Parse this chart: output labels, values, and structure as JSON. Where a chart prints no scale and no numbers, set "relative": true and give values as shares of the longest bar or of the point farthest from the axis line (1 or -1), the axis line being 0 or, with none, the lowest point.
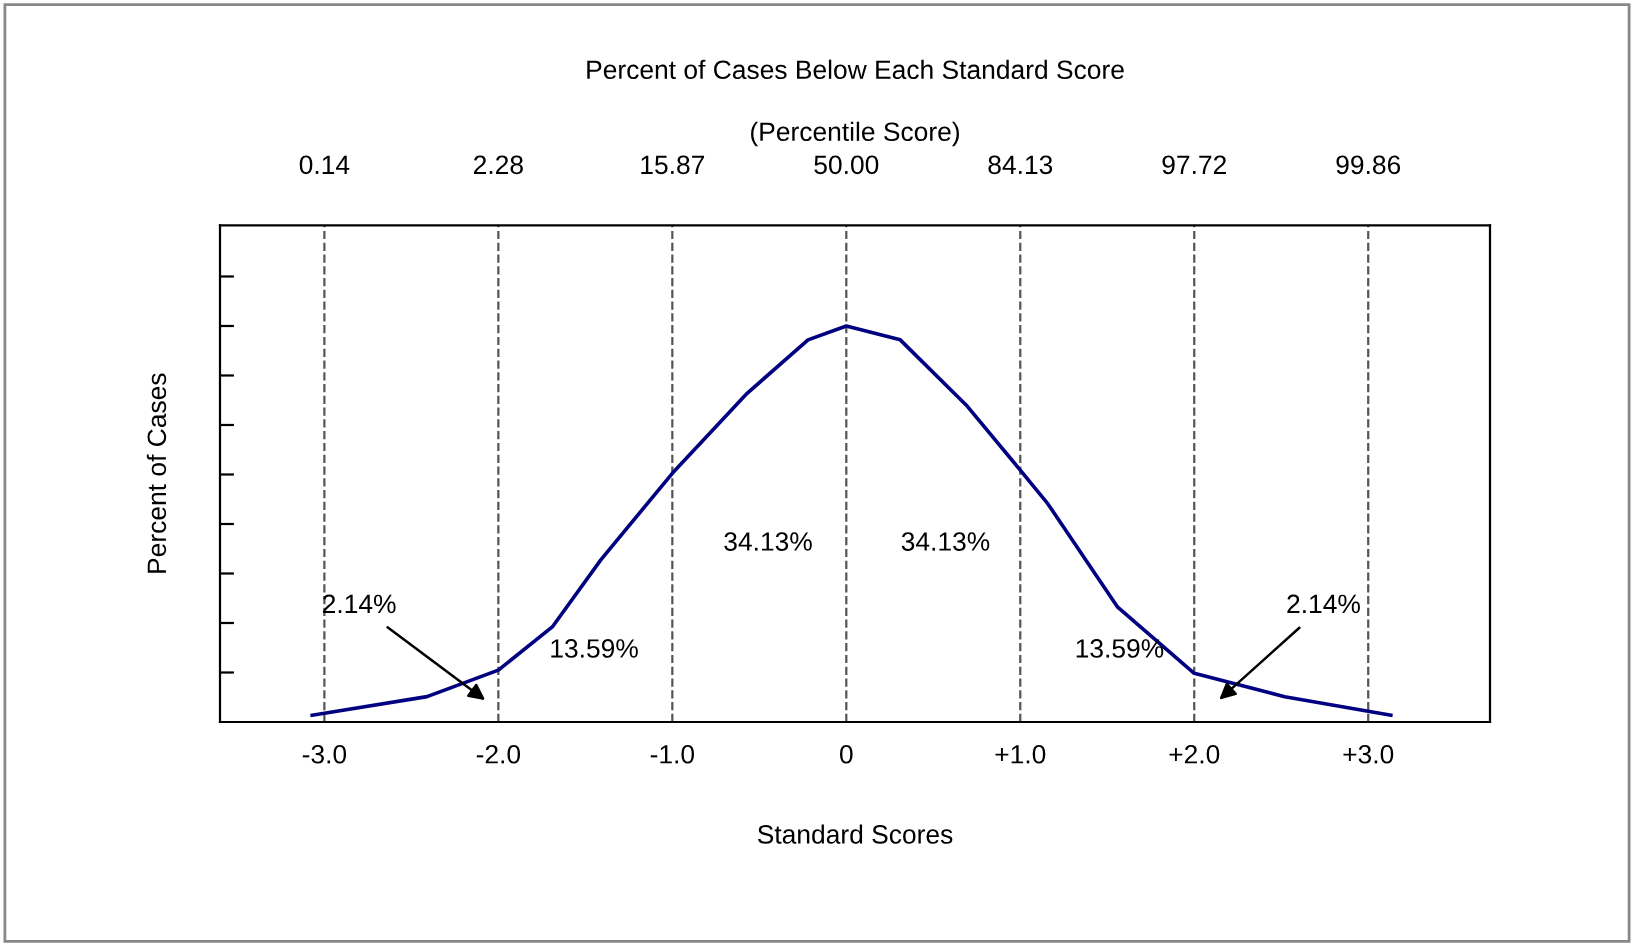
{
  "chart_data": {
    "type": "line",
    "title": "Percent of Cases Below Each Standard Score",
    "subtitle": "(Percentile Score)",
    "xlabel": "Standard Scores",
    "ylabel": "Percent of Cases",
    "relative": true,
    "series": [
      {
        "color": "#000080",
        "x": [
          -3.07,
          -2.41,
          -2.0,
          -1.69,
          -1.41,
          -1.0,
          -0.57,
          -0.22,
          0.0,
          0.31,
          0.69,
          1.0,
          1.16,
          1.56,
          2.0,
          2.52,
          3.13
        ],
        "values": [
          0.017,
          0.064,
          0.131,
          0.24,
          0.41,
          0.628,
          0.83,
          0.965,
          1.0,
          0.965,
          0.8,
          0.636,
          0.55,
          0.29,
          0.123,
          0.064,
          0.017
        ]
      }
    ],
    "xlim": [
      -3.6,
      3.7
    ],
    "xticks": [
      {
        "value": -3,
        "label": "-3.0"
      },
      {
        "value": -2,
        "label": "-2.0"
      },
      {
        "value": -1,
        "label": "-1.0"
      },
      0,
      {
        "value": 1,
        "label": "+1.0"
      },
      {
        "value": 2,
        "label": "+2.0"
      },
      {
        "value": 3,
        "label": "+3.0"
      }
    ],
    "ref_lines": [
      {
        "axis": "x",
        "value": -3,
        "color": "#555555",
        "line_style": "dashed"
      },
      {
        "axis": "x",
        "value": -2,
        "color": "#555555",
        "line_style": "dashed"
      },
      {
        "axis": "x",
        "value": -1,
        "color": "#555555",
        "line_style": "dashed"
      },
      {
        "axis": "x",
        "value": 0,
        "color": "#555555",
        "line_style": "dashed"
      },
      {
        "axis": "x",
        "value": 1,
        "color": "#555555",
        "line_style": "dashed"
      },
      {
        "axis": "x",
        "value": 2,
        "color": "#555555",
        "line_style": "dashed"
      },
      {
        "axis": "x",
        "value": 3,
        "color": "#555555",
        "line_style": "dashed"
      }
    ],
    "annotations": [
      "0.14",
      "2.28",
      "15.87",
      "50.00",
      "84.13",
      "97.72",
      "99.86",
      "2.14%",
      "13.59%",
      "34.13%",
      "34.13%",
      "13.59%",
      "2.14%"
    ],
    "grid": false,
    "legend": false,
    "marker": "none",
    "line_style": "solid"
  }
}
